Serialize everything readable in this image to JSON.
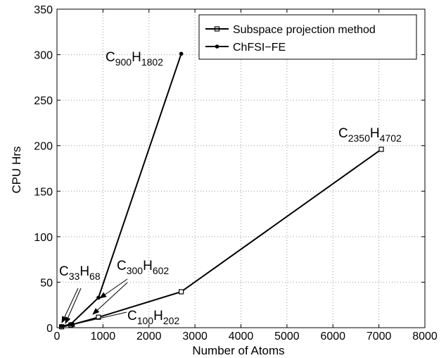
{
  "chart_data": {
    "type": "line",
    "xlabel": "Number of Atoms",
    "ylabel": "CPU Hrs",
    "xlim": [
      0,
      8000
    ],
    "ylim": [
      0,
      350
    ],
    "xticks": [
      0,
      1000,
      2000,
      3000,
      4000,
      5000,
      6000,
      7000,
      8000
    ],
    "yticks": [
      0,
      50,
      100,
      150,
      200,
      250,
      300,
      350
    ],
    "xtick_labels": [
      "0",
      "1000",
      "2000",
      "3000",
      "4000",
      "5000",
      "6000",
      "7000",
      "8000"
    ],
    "ytick_labels": [
      "0",
      "50",
      "100",
      "150",
      "200",
      "250",
      "300",
      "350"
    ],
    "grid": true,
    "legend_position": "top-right",
    "series": [
      {
        "name": "Subspace projection method",
        "marker": "square",
        "x": [
          101,
          302,
          902,
          2702,
          7052
        ],
        "y": [
          1.0,
          3.0,
          11.5,
          39.5,
          196.0
        ]
      },
      {
        "name": "ChFSI−FE",
        "marker": "circle",
        "x": [
          101,
          302,
          902,
          2702
        ],
        "y": [
          1.5,
          4.0,
          33.0,
          301.0
        ]
      }
    ],
    "annotations": [
      {
        "id": "c900",
        "base": "C",
        "sub1": "900",
        "mid": "H",
        "sub2": "1802"
      },
      {
        "id": "c2350",
        "base": "C",
        "sub1": "2350",
        "mid": "H",
        "sub2": "4702"
      },
      {
        "id": "c33",
        "base": "C",
        "sub1": "33",
        "mid": "H",
        "sub2": "68"
      },
      {
        "id": "c300",
        "base": "C",
        "sub1": "300",
        "mid": "H",
        "sub2": "602"
      },
      {
        "id": "c100",
        "base": "C",
        "sub1": "100",
        "mid": "H",
        "sub2": "202"
      }
    ]
  }
}
